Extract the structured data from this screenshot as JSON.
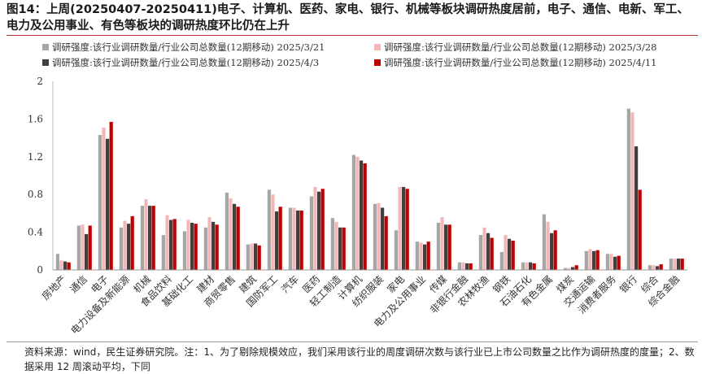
{
  "page": {
    "title": "图14：上周(20250407-20250411)电子、计算机、医药、家电、银行、机械等板块调研热度居前，电子、通信、电新、军工、电力及公用事业、有色等板块的调研热度环比仍在上升",
    "footnote": "资料来源：wind，民生证券研究院。注：1、为了剔除规模效应，我们采用该行业的周度调研次数与该行业已上市公司数量之比作为调研热度的度量；2、数据采用 12 周滚动平均，下同"
  },
  "chart_data": {
    "type": "bar",
    "ylim": [
      0,
      2
    ],
    "yticks": [
      "0",
      "0.4",
      "0.8",
      "1.2",
      "1.6",
      "2"
    ],
    "legend_position": "top",
    "categories": [
      "房地产",
      "通信",
      "电子",
      "电力设备及新能源",
      "机械",
      "食品饮料",
      "基础化工",
      "建材",
      "商贸零售",
      "建筑",
      "国防军工",
      "汽车",
      "医药",
      "轻工制造",
      "计算机",
      "纺织服装",
      "家电",
      "电力及公用事业",
      "传媒",
      "非银行金融",
      "农林牧渔",
      "钢铁",
      "石油石化",
      "有色金属",
      "煤炭",
      "交通运输",
      "消费者服务",
      "银行",
      "综合",
      "综合金融"
    ],
    "series": [
      {
        "name": "调研强度:该行业调研数量/行业公司总数量(12期移动) 2025/3/21",
        "color": "#a6a6a6",
        "values": [
          0.17,
          0.47,
          1.43,
          0.45,
          0.68,
          0.37,
          0.41,
          0.45,
          0.82,
          0.27,
          0.85,
          0.66,
          0.78,
          0.55,
          1.22,
          0.7,
          0.42,
          0.3,
          0.5,
          0.08,
          0.37,
          0.19,
          0.08,
          0.59,
          0.02,
          0.2,
          0.17,
          1.71,
          0.05,
          0.12
        ]
      },
      {
        "name": "调研强度:该行业调研数量/行业公司总数量(12期移动) 2025/3/28",
        "color": "#f2b8b8",
        "values": [
          0.1,
          0.48,
          1.51,
          0.52,
          0.75,
          0.58,
          0.53,
          0.56,
          0.76,
          0.28,
          0.8,
          0.66,
          0.88,
          0.51,
          1.2,
          0.71,
          0.88,
          0.29,
          0.56,
          0.08,
          0.45,
          0.37,
          0.08,
          0.51,
          0.02,
          0.22,
          0.17,
          1.67,
          0.05,
          0.12
        ]
      },
      {
        "name": "调研强度:该行业调研数量/行业公司总数量(12期移动) 2025/4/3",
        "color": "#404040",
        "values": [
          0.09,
          0.38,
          1.39,
          0.49,
          0.68,
          0.53,
          0.5,
          0.51,
          0.7,
          0.28,
          0.62,
          0.63,
          0.83,
          0.45,
          1.16,
          0.66,
          0.88,
          0.27,
          0.48,
          0.07,
          0.39,
          0.33,
          0.08,
          0.39,
          0.03,
          0.2,
          0.14,
          1.31,
          0.04,
          0.12
        ]
      },
      {
        "name": "调研强度:该行业调研数量/行业公司总数量(12期移动) 2025/4/11",
        "color": "#c00000",
        "values": [
          0.08,
          0.47,
          1.57,
          0.57,
          0.68,
          0.54,
          0.49,
          0.48,
          0.67,
          0.26,
          0.67,
          0.63,
          0.86,
          0.45,
          1.13,
          0.57,
          0.86,
          0.3,
          0.48,
          0.07,
          0.34,
          0.31,
          0.07,
          0.42,
          0.05,
          0.21,
          0.15,
          0.85,
          0.06,
          0.12
        ]
      }
    ]
  }
}
